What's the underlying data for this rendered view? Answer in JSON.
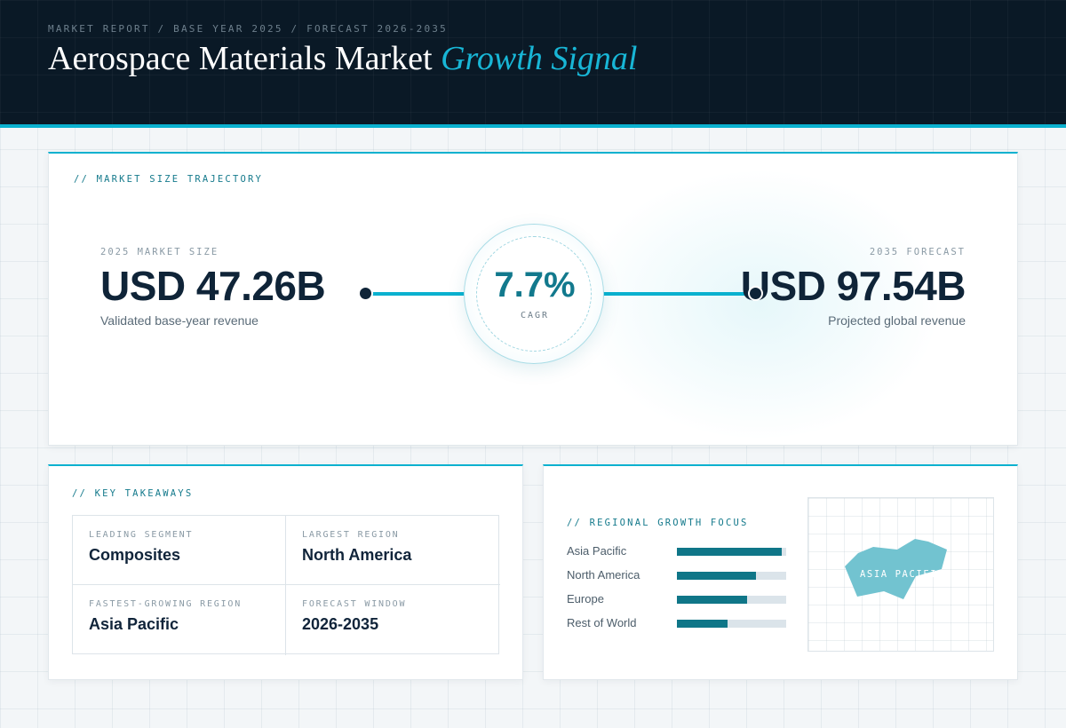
{
  "header": {
    "breadcrumb": "MARKET REPORT / BASE YEAR 2025 / FORECAST 2026-2035",
    "title_main": "Aerospace Materials Market",
    "title_accent": "Growth Signal"
  },
  "trajectory": {
    "section_label": "// MARKET SIZE TRAJECTORY",
    "start": {
      "caption": "2025 MARKET SIZE",
      "value": "USD 47.26B",
      "note": "Validated base-year revenue"
    },
    "end": {
      "caption": "2035 FORECAST",
      "value": "USD 97.54B",
      "note": "Projected global revenue"
    },
    "cagr": {
      "value": "7.7%",
      "label": "CAGR"
    }
  },
  "takeaways": {
    "section_label": "// KEY TAKEAWAYS",
    "items": [
      {
        "key": "LEADING SEGMENT",
        "value": "Composites"
      },
      {
        "key": "LARGEST REGION",
        "value": "North America"
      },
      {
        "key": "FASTEST-GROWING REGION",
        "value": "Asia Pacific"
      },
      {
        "key": "FORECAST WINDOW",
        "value": "2026-2035"
      }
    ]
  },
  "regional": {
    "section_label": "// REGIONAL GROWTH FOCUS",
    "bars": [
      {
        "label": "Asia Pacific",
        "fill": 0.96
      },
      {
        "label": "North America",
        "fill": 0.72
      },
      {
        "label": "Europe",
        "fill": 0.64
      },
      {
        "label": "Rest of World",
        "fill": 0.46
      }
    ],
    "map_label": "ASIA PACIFIC"
  },
  "colors": {
    "accent": "#0ab1cf",
    "header_bg": "#0a1926",
    "bar_fill": "#0f7688",
    "map_shape": "#72c3d0"
  }
}
